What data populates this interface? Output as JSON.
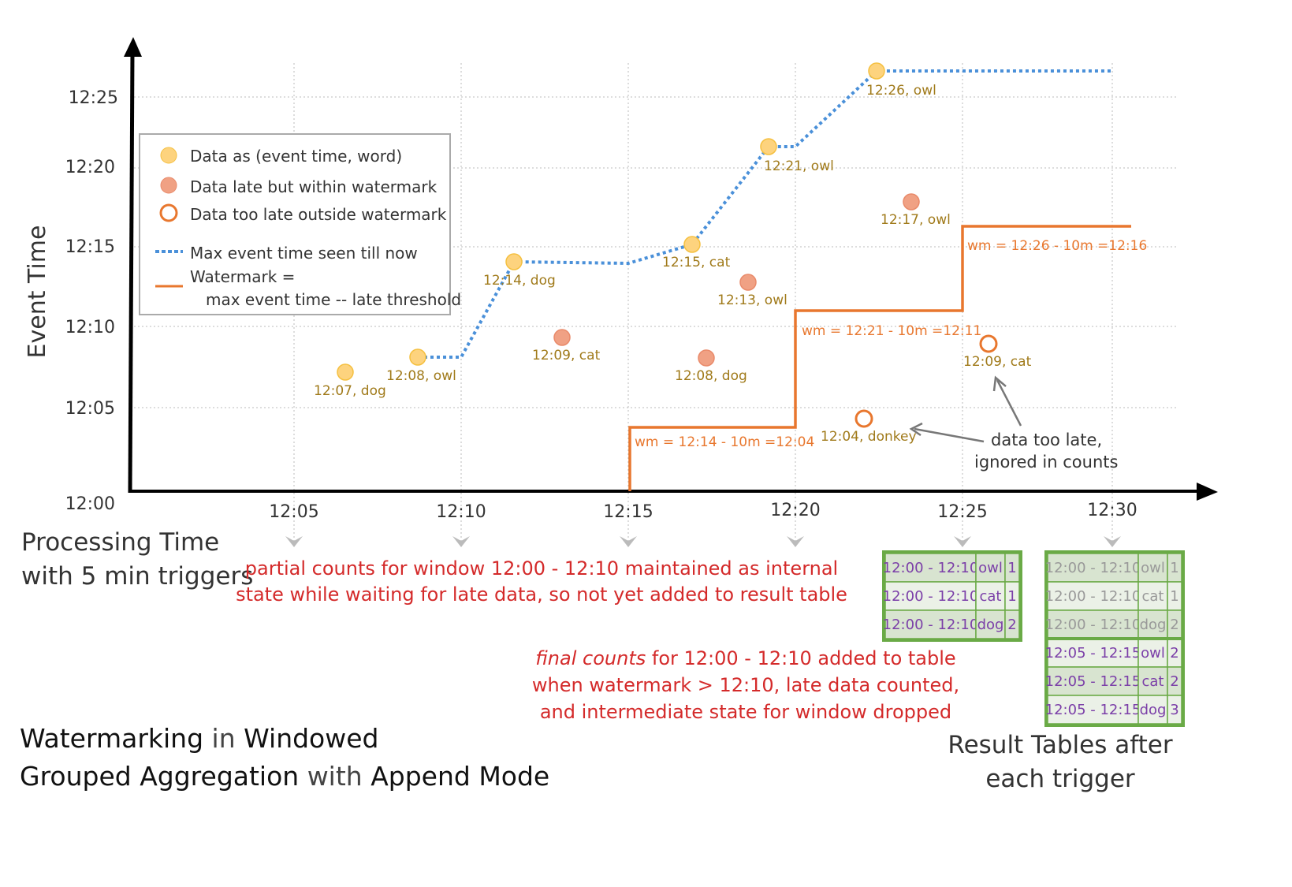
{
  "axes": {
    "y_label": "Event Time",
    "y_ticks": [
      "12:00",
      "12:05",
      "12:10",
      "12:15",
      "12:20",
      "12:25"
    ],
    "x_ticks": [
      "12:05",
      "12:10",
      "12:15",
      "12:20",
      "12:25",
      "12:30"
    ],
    "x_label_line1": "Processing Time",
    "x_label_line2": "with 5 min triggers"
  },
  "legend": {
    "data": "Data as (event time, word)",
    "late": "Data late but within watermark",
    "too_late": "Data too late outside watermark",
    "max_event": "Max event time seen till now",
    "watermark_1": "Watermark =",
    "watermark_2": "max event time -- late threshold"
  },
  "points": [
    {
      "label": "12:07, dog",
      "type": "data"
    },
    {
      "label": "12:08, owl",
      "type": "data"
    },
    {
      "label": "12:14, dog",
      "type": "data"
    },
    {
      "label": "12:09, cat",
      "type": "late"
    },
    {
      "label": "12:15, cat",
      "type": "data"
    },
    {
      "label": "12:08, dog",
      "type": "late"
    },
    {
      "label": "12:13, owl",
      "type": "late"
    },
    {
      "label": "12:21, owl",
      "type": "data"
    },
    {
      "label": "12:04, donkey",
      "type": "too_late"
    },
    {
      "label": "12:26, owl",
      "type": "data"
    },
    {
      "label": "12:17, owl",
      "type": "late"
    },
    {
      "label": "12:09, cat",
      "type": "too_late"
    }
  ],
  "watermark_labels": [
    "wm = 12:14 - 10m =12:04",
    "wm = 12:21 - 10m =12:11",
    "wm = 12:26 - 10m =12:16"
  ],
  "annotations": {
    "too_late_1": "data too late,",
    "too_late_2": "ignored in counts",
    "partial_1": "partial counts for window 12:00 - 12:10 maintained as internal",
    "partial_2": "state while waiting for late data, so not yet added  to result table",
    "final_em": "final counts",
    "final_1": " for 12:00 - 12:10 added to table",
    "final_2": "when watermark > 12:10, late data counted,",
    "final_3": "and intermediate state for window dropped"
  },
  "title": {
    "l1a": "Watermarking",
    "l1b": " in ",
    "l1c": "Windowed",
    "l2a": "Grouped Aggregation",
    "l2b": " with ",
    "l2c": "Append Mode"
  },
  "result_caption_1": "Result Tables after",
  "result_caption_2": "each trigger",
  "table_1225": [
    [
      "12:00 - 12:10",
      "owl",
      "1"
    ],
    [
      "12:00 - 12:10",
      "cat",
      "1"
    ],
    [
      "12:00 - 12:10",
      "dog",
      "2"
    ]
  ],
  "table_1230": [
    [
      "12:00 - 12:10",
      "owl",
      "1"
    ],
    [
      "12:00 - 12:10",
      "cat",
      "1"
    ],
    [
      "12:00 - 12:10",
      "dog",
      "2"
    ],
    [
      "12:05 - 12:15",
      "owl",
      "2"
    ],
    [
      "12:05 - 12:15",
      "cat",
      "2"
    ],
    [
      "12:05 - 12:15",
      "dog",
      "3"
    ]
  ],
  "colors": {
    "data": "#fdd37e",
    "late": "#f0a184",
    "too_late": "#e8772e",
    "max_line": "#4a90d9",
    "watermark": "#e8772e",
    "table_border": "#6aaa46",
    "table_text": "#7b3fa8",
    "faded_text": "#999999",
    "red": "#d42a2a"
  }
}
